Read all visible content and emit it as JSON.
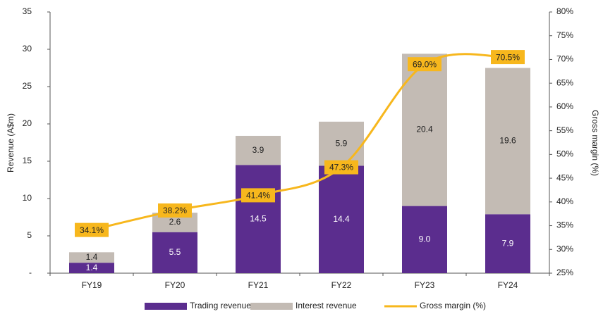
{
  "chart_data": {
    "type": "stacked-bar-line",
    "y_label": "Revenue (A$m)",
    "y2_label": "Gross margin (%)",
    "categories": [
      "FY19",
      "FY20",
      "FY21",
      "FY22",
      "FY23",
      "FY24"
    ],
    "series": [
      {
        "name": "Trading revenues",
        "color": "#5b2d8e",
        "type": "bar",
        "values": [
          1.4,
          5.5,
          14.5,
          14.4,
          9.0,
          7.9
        ],
        "value_labels": [
          "1.4",
          "5.5",
          "14.5",
          "14.4",
          "9.0",
          "7.9"
        ]
      },
      {
        "name": "Interest revenue",
        "color": "#c3bbb4",
        "type": "bar",
        "values": [
          1.4,
          2.6,
          3.9,
          5.9,
          20.4,
          19.6
        ],
        "value_labels": [
          "1.4",
          "2.6",
          "3.9",
          "5.9",
          "20.4",
          "19.6"
        ]
      },
      {
        "name": "Gross margin (%)",
        "color": "#f7b71d",
        "type": "line",
        "axis": "y2",
        "values": [
          34.1,
          38.2,
          41.4,
          47.3,
          69.0,
          70.5
        ],
        "value_labels": [
          "34.1%",
          "38.2%",
          "41.4%",
          "47.3%",
          "69.0%",
          "70.5%"
        ]
      }
    ],
    "ylim": [
      0,
      35
    ],
    "yticks": [
      {
        "value": 0,
        "label": "-"
      },
      5,
      10,
      15,
      20,
      25,
      30,
      35
    ],
    "y2lim": [
      25,
      80
    ],
    "y2ticks": [
      {
        "value": 25,
        "label": "25%"
      },
      {
        "value": 30,
        "label": "30%"
      },
      {
        "value": 35,
        "label": "35%"
      },
      {
        "value": 40,
        "label": "40%"
      },
      {
        "value": 45,
        "label": "45%"
      },
      {
        "value": 50,
        "label": "50%"
      },
      {
        "value": 55,
        "label": "55%"
      },
      {
        "value": 60,
        "label": "60%"
      },
      {
        "value": 65,
        "label": "65%"
      },
      {
        "value": 70,
        "label": "70%"
      },
      {
        "value": 75,
        "label": "75%"
      },
      {
        "value": 80,
        "label": "80%"
      }
    ],
    "legend": "bottom"
  }
}
